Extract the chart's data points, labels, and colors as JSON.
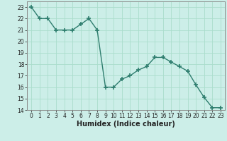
{
  "x": [
    0,
    1,
    2,
    3,
    4,
    5,
    6,
    7,
    8,
    9,
    10,
    11,
    12,
    13,
    14,
    15,
    16,
    17,
    18,
    19,
    20,
    21,
    22,
    23
  ],
  "y": [
    23,
    22,
    22,
    21,
    21,
    21,
    21.5,
    22,
    21,
    16,
    16,
    16.7,
    17,
    17.5,
    17.8,
    18.6,
    18.6,
    18.2,
    17.8,
    17.4,
    16.2,
    15.1,
    14.2,
    14.2
  ],
  "line_color": "#2e7d6e",
  "marker": "+",
  "marker_size": 4,
  "marker_lw": 1.2,
  "bg_color": "#cceee8",
  "grid_color": "#aaddcc",
  "xlabel": "Humidex (Indice chaleur)",
  "xlim": [
    -0.5,
    23.5
  ],
  "ylim": [
    14,
    23.5
  ],
  "yticks": [
    14,
    15,
    16,
    17,
    18,
    19,
    20,
    21,
    22,
    23
  ],
  "xticks": [
    0,
    1,
    2,
    3,
    4,
    5,
    6,
    7,
    8,
    9,
    10,
    11,
    12,
    13,
    14,
    15,
    16,
    17,
    18,
    19,
    20,
    21,
    22,
    23
  ],
  "tick_fontsize": 5.5,
  "xlabel_fontsize": 7
}
